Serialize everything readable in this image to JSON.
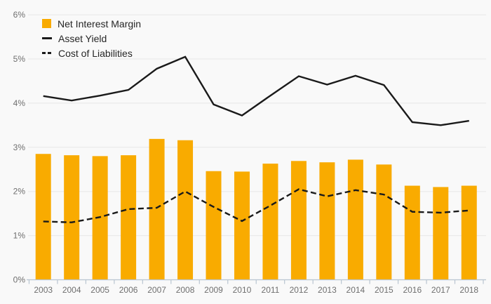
{
  "colors": {
    "background": "#F9F9F9",
    "gridline": "#E7E7E7",
    "axis": "#B9C5D1",
    "tick_label": "#6F6F6F",
    "legend_text": "#262626",
    "bar": "#F9AB00",
    "line": "#1A1A1A"
  },
  "chart_data": {
    "type": "bar",
    "title": "",
    "xlabel": "",
    "ylabel": "",
    "ylim": [
      0,
      6
    ],
    "yticks": [
      "0%",
      "1%",
      "2%",
      "3%",
      "4%",
      "5%",
      "6%"
    ],
    "grid": true,
    "legend_position": "top-left",
    "categories": [
      "2003",
      "2004",
      "2005",
      "2006",
      "2007",
      "2008",
      "2009",
      "2010",
      "2011",
      "2012",
      "2013",
      "2014",
      "2015",
      "2016",
      "2017",
      "2018"
    ],
    "series": [
      {
        "name": "Net Interest Margin",
        "type": "bar",
        "color": "#F9AB00",
        "values": [
          2.85,
          2.82,
          2.8,
          2.82,
          3.19,
          3.16,
          2.46,
          2.45,
          2.63,
          2.69,
          2.66,
          2.72,
          2.61,
          2.13,
          2.1,
          2.13
        ]
      },
      {
        "name": "Asset Yield",
        "type": "line",
        "line_style": "solid",
        "color": "#1A1A1A",
        "values": [
          4.16,
          4.06,
          4.17,
          4.3,
          4.78,
          5.05,
          3.97,
          3.72,
          4.17,
          4.61,
          4.42,
          4.62,
          4.41,
          3.57,
          3.5,
          3.6
        ]
      },
      {
        "name": "Cost of Liabilities",
        "type": "line",
        "line_style": "dashed",
        "color": "#1A1A1A",
        "values": [
          1.32,
          1.3,
          1.42,
          1.6,
          1.63,
          2.0,
          1.65,
          1.33,
          1.68,
          2.05,
          1.89,
          2.03,
          1.93,
          1.54,
          1.52,
          1.57
        ]
      }
    ]
  }
}
